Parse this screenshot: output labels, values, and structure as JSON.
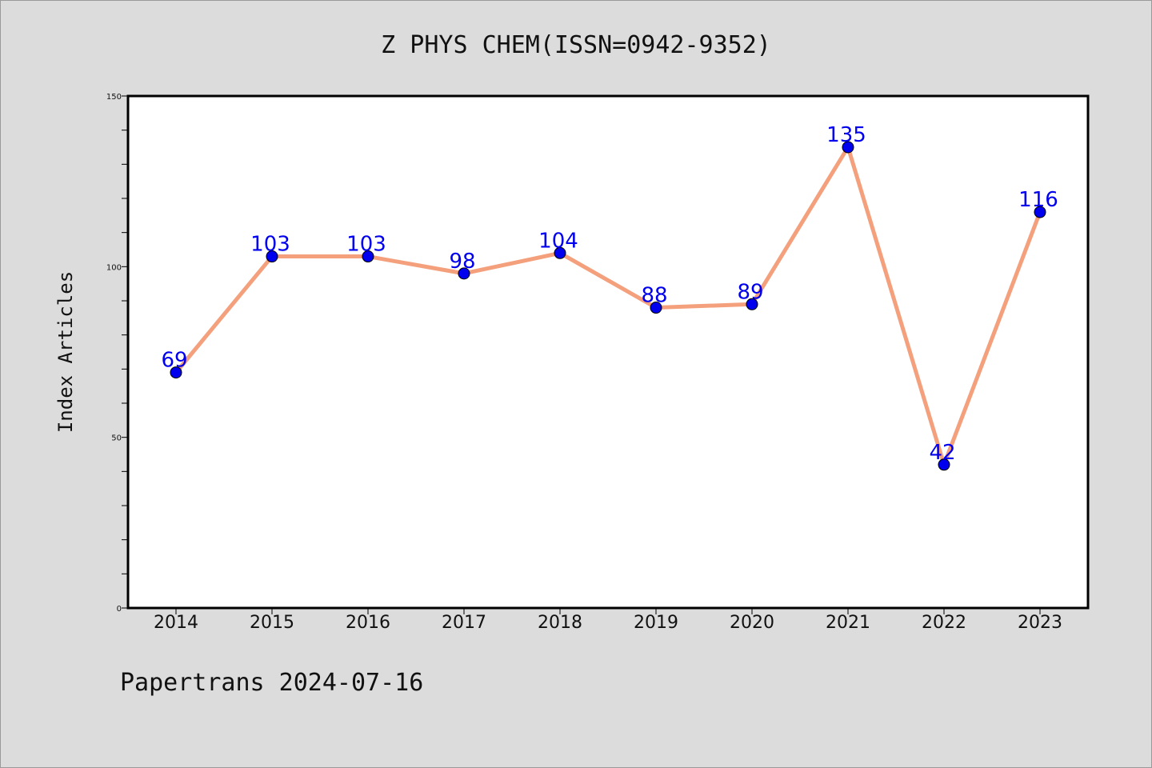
{
  "chart_data": {
    "type": "line",
    "title": "Z PHYS CHEM(ISSN=0942-9352)",
    "xlabel": "",
    "ylabel": "Index Articles",
    "categories": [
      "2014",
      "2015",
      "2016",
      "2017",
      "2018",
      "2019",
      "2020",
      "2021",
      "2022",
      "2023"
    ],
    "values": [
      69,
      103,
      103,
      98,
      104,
      88,
      89,
      135,
      42,
      116
    ],
    "data_labels": [
      "69",
      "103",
      "103",
      "98",
      "104",
      "88",
      "89",
      "135",
      "42",
      "116"
    ],
    "ylim": [
      0,
      150
    ],
    "yticks": [
      "0",
      "50",
      "100",
      "150"
    ],
    "grid": false,
    "line_color": "#f4a07c",
    "marker_color": "#0000ee",
    "label_color": "#0000ee"
  },
  "footer": "Papertrans 2024-07-16"
}
